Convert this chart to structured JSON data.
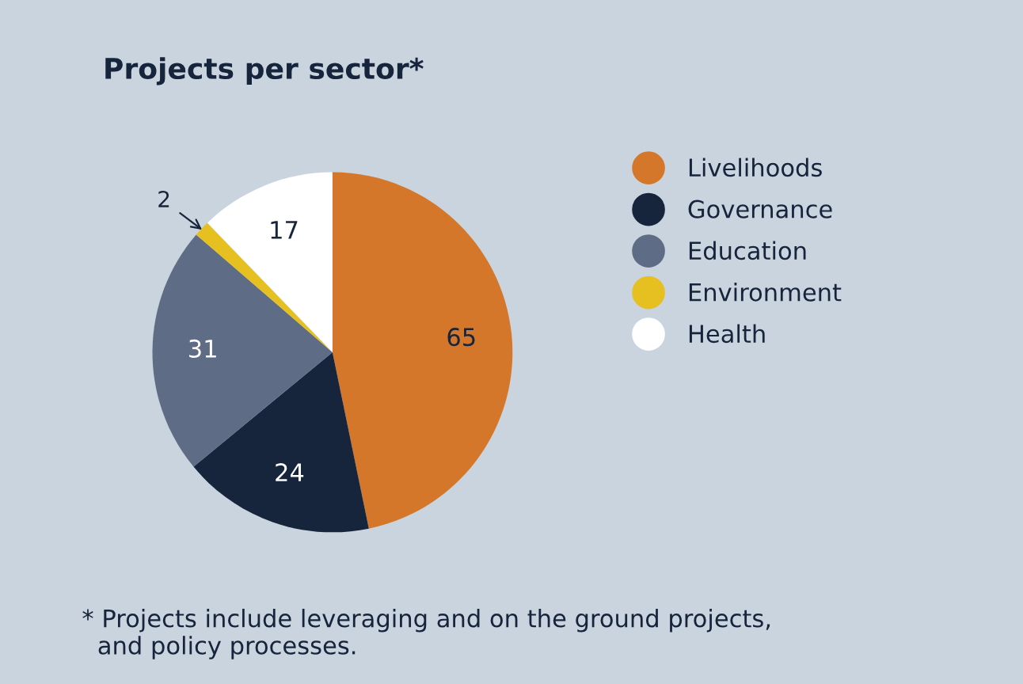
{
  "chart_data": {
    "type": "pie",
    "title": "Projects per sector*",
    "categories": [
      "Livelihoods",
      "Governance",
      "Education",
      "Environment",
      "Health"
    ],
    "values": [
      65,
      24,
      31,
      2,
      17
    ],
    "colors": [
      "#d4772a",
      "#16243c",
      "#5e6c85",
      "#e6c021",
      "#ffffff"
    ],
    "data_labels": true,
    "legend": "right",
    "annotations": [
      "* Projects include leveraging and on the ground projects,\n  and policy processes."
    ]
  }
}
